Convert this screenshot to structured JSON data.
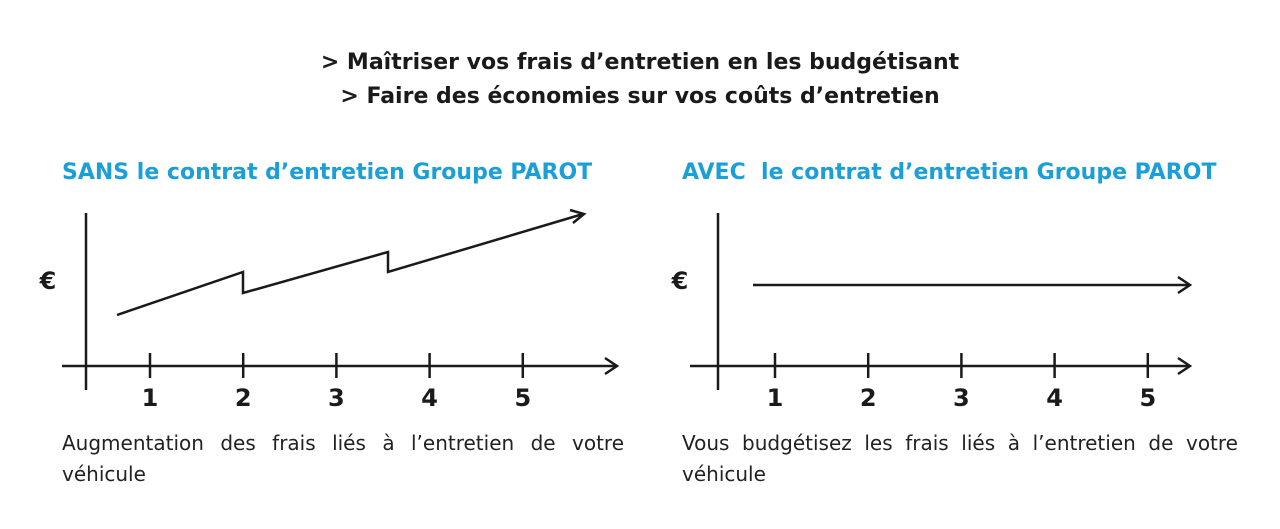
{
  "header": {
    "lines": [
      "> Maîtriser vos frais d’entretien en les budgétisant",
      "> Faire des économies sur vos coûts d’entretien"
    ]
  },
  "panels": [
    {
      "title": "SANS le contrat d’entretien Groupe PAROT",
      "axis_label": "€",
      "ticks": [
        1,
        2,
        3,
        4,
        5
      ],
      "caption": "Augmentation des frais liés à l’entretien de votre véhicule"
    },
    {
      "title": "AVEC  le contrat d’entretien Groupe PAROT",
      "axis_label": "€",
      "ticks": [
        1,
        2,
        3,
        4,
        5
      ],
      "caption": "Vous budgétisez les frais liés à l’entretien de votre véhicule"
    }
  ]
}
